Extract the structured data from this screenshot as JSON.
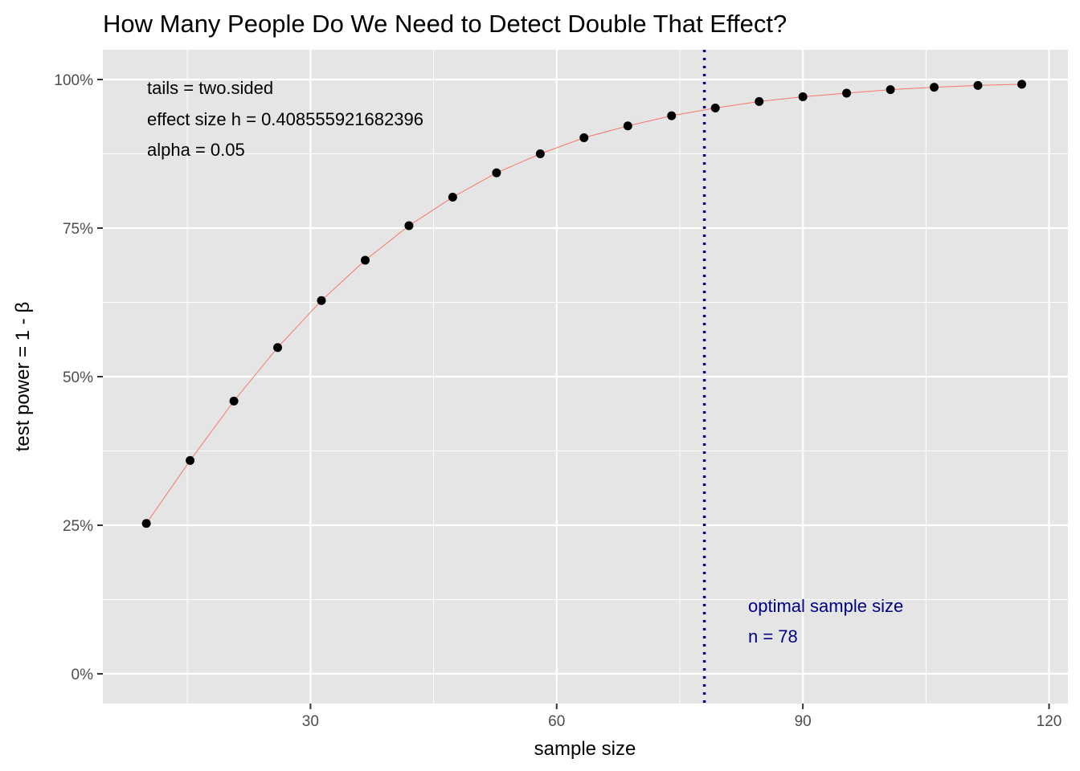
{
  "chart_data": {
    "type": "line",
    "title": "How Many People Do We Need to Detect Double That Effect?",
    "xlabel": "sample size",
    "ylabel": "test power = 1 - β",
    "xlim": [
      4.7,
      122.3
    ],
    "ylim": [
      -0.05,
      1.05
    ],
    "x_ticks": [
      30,
      60,
      90,
      120
    ],
    "x_tick_labels": [
      "30",
      "60",
      "90",
      "120"
    ],
    "y_ticks": [
      0,
      0.25,
      0.5,
      0.75,
      1.0
    ],
    "y_tick_labels": [
      "0%",
      "25%",
      "50%",
      "75%",
      "100%"
    ],
    "grid": true,
    "colors": {
      "panel": "#e5e5e5",
      "grid": "#ffffff",
      "line": "#f8766d",
      "points": "#000000",
      "vline": "#000080"
    },
    "series": [
      {
        "x": [
          10,
          15.33,
          20.67,
          26,
          31.33,
          36.67,
          42,
          47.33,
          52.67,
          58,
          63.33,
          68.67,
          74,
          79.33,
          84.67,
          90,
          95.33,
          100.67,
          106,
          111.33,
          116.67
        ],
        "values": [
          0.253,
          0.359,
          0.459,
          0.549,
          0.628,
          0.696,
          0.754,
          0.802,
          0.843,
          0.875,
          0.902,
          0.922,
          0.939,
          0.952,
          0.963,
          0.971,
          0.977,
          0.983,
          0.987,
          0.99,
          0.992
        ]
      }
    ],
    "optimal_n": 78,
    "annotations": {
      "tails": "tails = two.sided",
      "effect_size": "effect size h = 0.408555921682396",
      "alpha": "alpha = 0.05",
      "optimal_label": "optimal sample size",
      "optimal_n_label": "n = 78"
    }
  }
}
